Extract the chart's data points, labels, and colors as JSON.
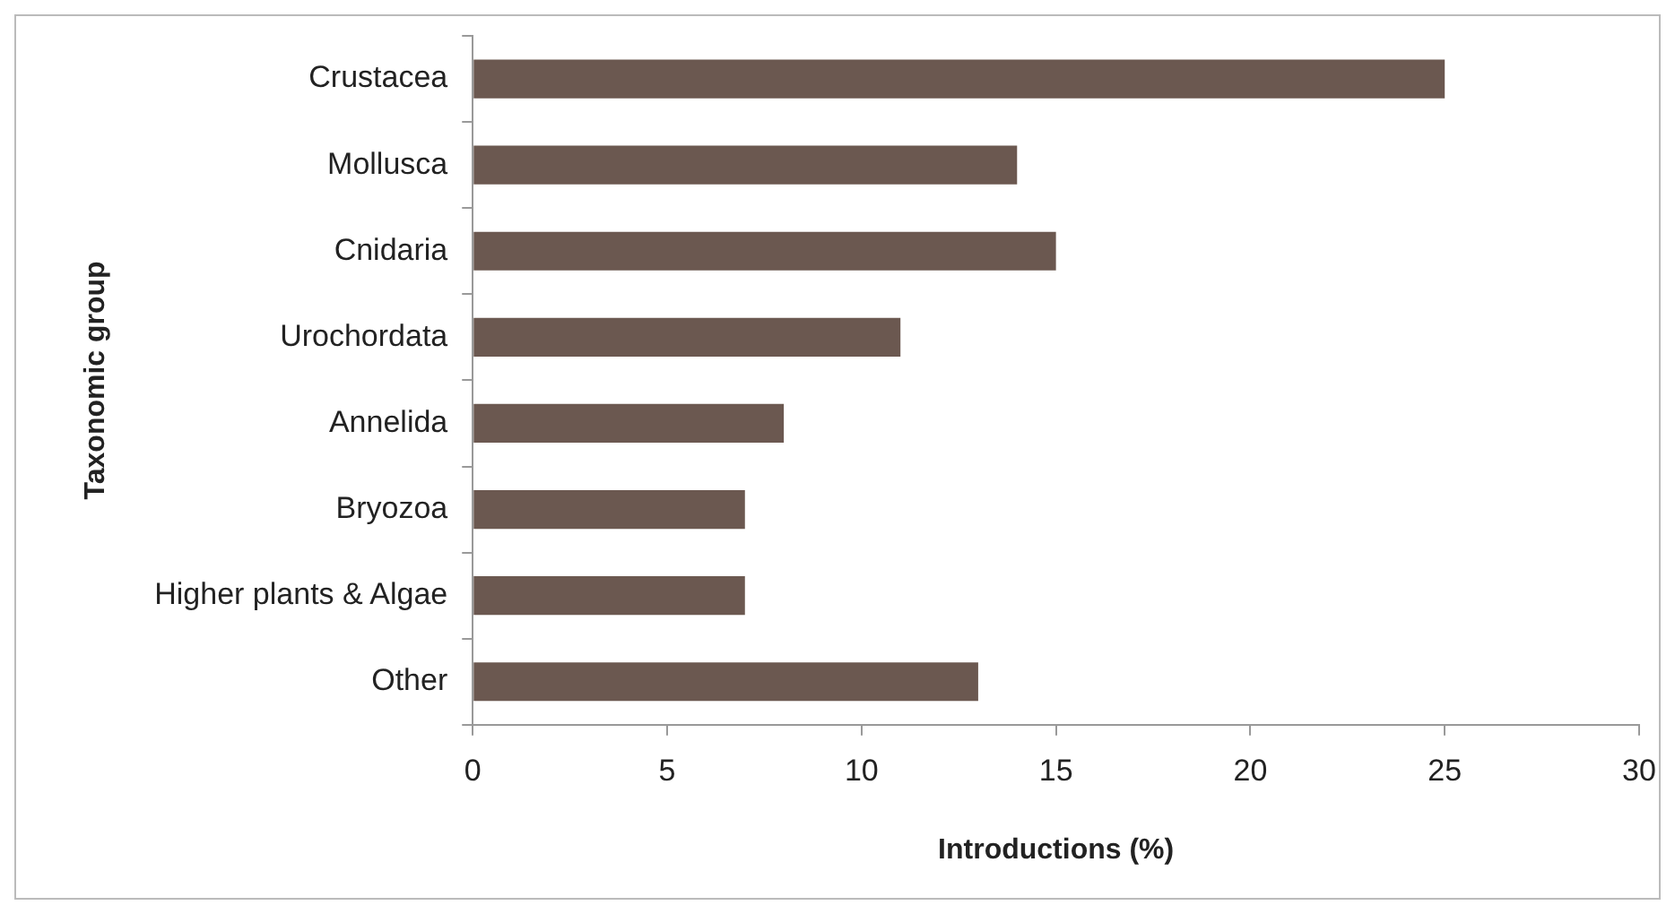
{
  "chart_data": {
    "type": "bar",
    "orientation": "horizontal",
    "xlabel": "Introductions (%)",
    "ylabel": "Taxonomic group",
    "categories": [
      "Crustacea",
      "Mollusca",
      "Cnidaria",
      "Urochordata",
      "Annelida",
      "Bryozoa",
      "Higher plants & Algae",
      "Other"
    ],
    "values": [
      25,
      14,
      15,
      11,
      8,
      7,
      7,
      13
    ],
    "color": "#6b5850",
    "xlim": [
      0,
      30
    ],
    "xticks": [
      0,
      5,
      10,
      15,
      20,
      25,
      30
    ],
    "grid": false,
    "legend": false
  }
}
